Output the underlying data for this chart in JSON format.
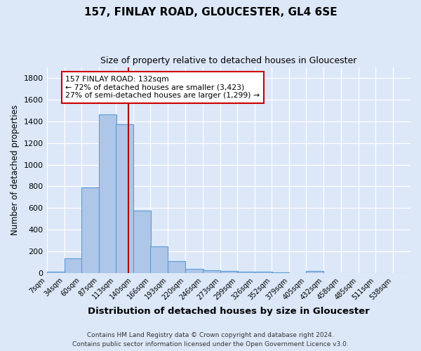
{
  "title1": "157, FINLAY ROAD, GLOUCESTER, GL4 6SE",
  "title2": "Size of property relative to detached houses in Gloucester",
  "xlabel": "Distribution of detached houses by size in Gloucester",
  "ylabel": "Number of detached properties",
  "bin_labels": [
    "7sqm",
    "34sqm",
    "60sqm",
    "87sqm",
    "113sqm",
    "140sqm",
    "166sqm",
    "193sqm",
    "220sqm",
    "246sqm",
    "273sqm",
    "299sqm",
    "326sqm",
    "352sqm",
    "379sqm",
    "405sqm",
    "432sqm",
    "458sqm",
    "485sqm",
    "511sqm",
    "538sqm"
  ],
  "bar_heights": [
    10,
    135,
    790,
    1460,
    1375,
    575,
    245,
    110,
    40,
    25,
    18,
    15,
    13,
    8,
    0,
    18,
    0,
    0,
    0,
    0,
    0
  ],
  "bin_edges": [
    7,
    34,
    60,
    87,
    113,
    140,
    166,
    193,
    220,
    246,
    273,
    299,
    326,
    352,
    379,
    405,
    432,
    458,
    485,
    511,
    538
  ],
  "bar_color": "#aec6e8",
  "bar_edge_color": "#5b9bd5",
  "property_line_x": 132,
  "annotation_line1": "157 FINLAY ROAD: 132sqm",
  "annotation_line2": "← 72% of detached houses are smaller (3,423)",
  "annotation_line3": "27% of semi-detached houses are larger (1,299) →",
  "annotation_box_color": "#ffffff",
  "annotation_box_edge_color": "#cc0000",
  "vline_color": "#aa0000",
  "ylim": [
    0,
    1900
  ],
  "background_color": "#dce8f8",
  "fig_background_color": "#dce8f8",
  "grid_color": "#ffffff",
  "footnote1": "Contains HM Land Registry data © Crown copyright and database right 2024.",
  "footnote2": "Contains public sector information licensed under the Open Government Licence v3.0."
}
